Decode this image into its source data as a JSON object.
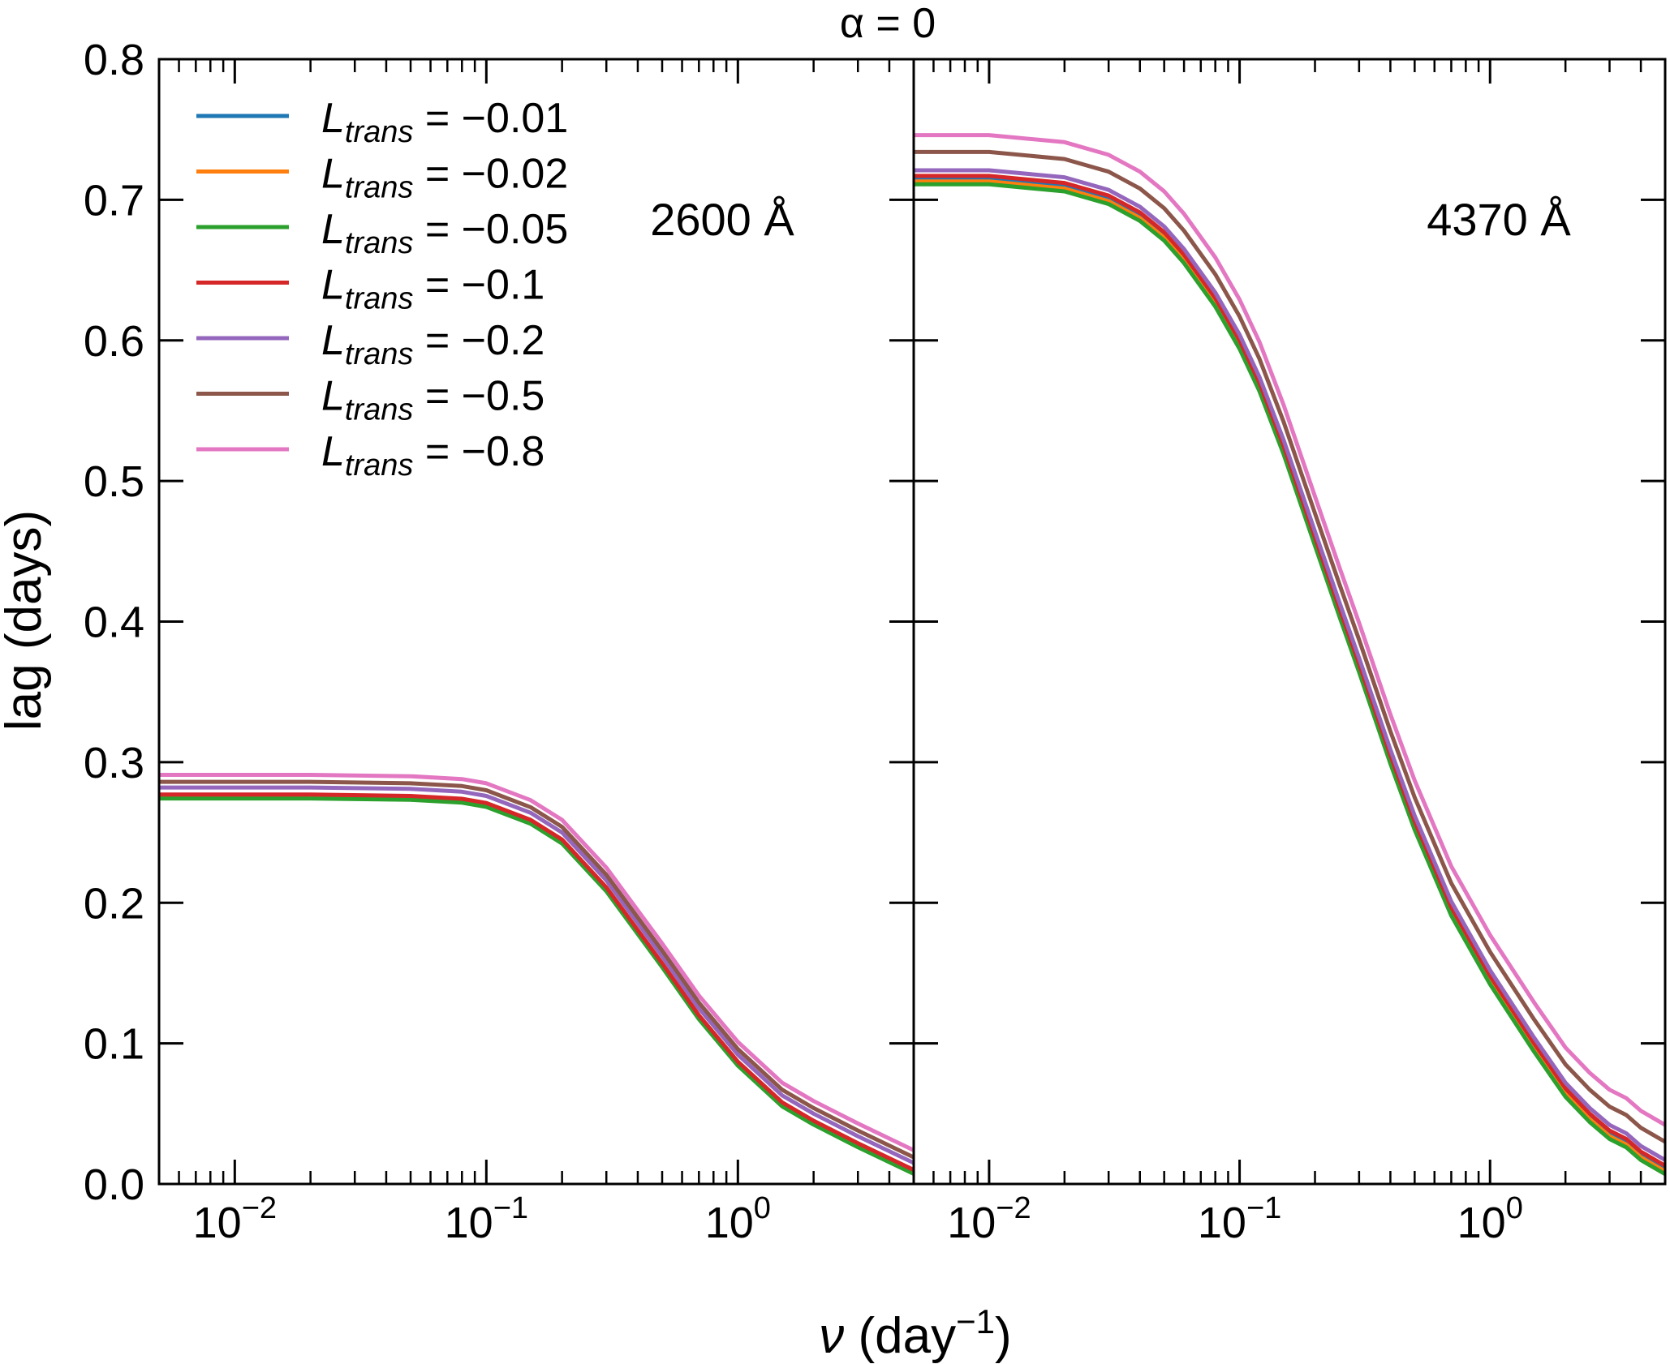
{
  "chart_data": {
    "type": "line",
    "title": "α = 0",
    "xlabel": "ν (day⁻¹)",
    "ylabel": "lag (days)",
    "xscale": "log",
    "xlim": [
      0.005,
      5.0
    ],
    "ylim": [
      0.0,
      0.8
    ],
    "y_ticks": [
      "0.0",
      "0.1",
      "0.2",
      "0.3",
      "0.4",
      "0.5",
      "0.6",
      "0.7",
      "0.8"
    ],
    "x_major_ticks": [
      {
        "base": "10",
        "exp": "−2",
        "value": 0.01
      },
      {
        "base": "10",
        "exp": "−1",
        "value": 0.1
      },
      {
        "base": "10",
        "exp": "0",
        "value": 1.0
      }
    ],
    "legend": {
      "position": "top-left",
      "symbol": "L",
      "subscript": "trans",
      "entries": [
        {
          "value": "= −0.01",
          "color": "#1f77b4"
        },
        {
          "value": "= −0.02",
          "color": "#ff7f0e"
        },
        {
          "value": "= −0.05",
          "color": "#2ca02c"
        },
        {
          "value": "= −0.1",
          "color": "#d62728"
        },
        {
          "value": "= −0.2",
          "color": "#9467bd"
        },
        {
          "value": "= −0.5",
          "color": "#8c564b"
        },
        {
          "value": "= −0.8",
          "color": "#e377c2"
        }
      ]
    },
    "panels": [
      {
        "label": "2600 Å",
        "x": [
          0.005,
          0.01,
          0.02,
          0.05,
          0.08,
          0.1,
          0.15,
          0.2,
          0.3,
          0.5,
          0.7,
          1.0,
          1.5,
          2.0,
          3.0,
          5.0
        ],
        "base": [
          0.275,
          0.275,
          0.275,
          0.274,
          0.272,
          0.269,
          0.257,
          0.243,
          0.209,
          0.155,
          0.118,
          0.085,
          0.056,
          0.043,
          0.027,
          0.008
        ],
        "series": [
          {
            "name": "L_trans = −0.01",
            "offset": 0.0
          },
          {
            "name": "L_trans = −0.02",
            "offset": 0.0005
          },
          {
            "name": "L_trans = −0.05",
            "offset": -0.0008
          },
          {
            "name": "L_trans = −0.1",
            "offset": 0.002
          },
          {
            "name": "L_trans = −0.2",
            "offset": 0.007
          },
          {
            "name": "L_trans = −0.5",
            "offset": 0.011
          },
          {
            "name": "L_trans = −0.8",
            "offset": 0.016
          }
        ]
      },
      {
        "label": "4370 Å",
        "x": [
          0.005,
          0.01,
          0.02,
          0.03,
          0.04,
          0.05,
          0.06,
          0.08,
          0.1,
          0.12,
          0.15,
          0.2,
          0.25,
          0.3,
          0.4,
          0.5,
          0.7,
          1.0,
          1.5,
          2.0,
          2.5,
          3.0,
          3.5,
          4.0,
          5.0
        ],
        "base": [
          0.712,
          0.712,
          0.707,
          0.698,
          0.686,
          0.672,
          0.656,
          0.625,
          0.595,
          0.565,
          0.52,
          0.455,
          0.405,
          0.365,
          0.3,
          0.253,
          0.192,
          0.143,
          0.095,
          0.063,
          0.045,
          0.033,
          0.027,
          0.018,
          0.008
        ],
        "series": [
          {
            "name": "L_trans = −0.01",
            "offset": 0.003
          },
          {
            "name": "L_trans = −0.02",
            "offset": 0.001
          },
          {
            "name": "L_trans = −0.05",
            "offset": -0.001
          },
          {
            "name": "L_trans = −0.1",
            "offset": 0.005
          },
          {
            "name": "L_trans = −0.2",
            "offset": 0.009
          },
          {
            "name": "L_trans = −0.5",
            "offset": 0.022
          },
          {
            "name": "L_trans = −0.8",
            "offset": 0.034
          }
        ]
      }
    ]
  }
}
